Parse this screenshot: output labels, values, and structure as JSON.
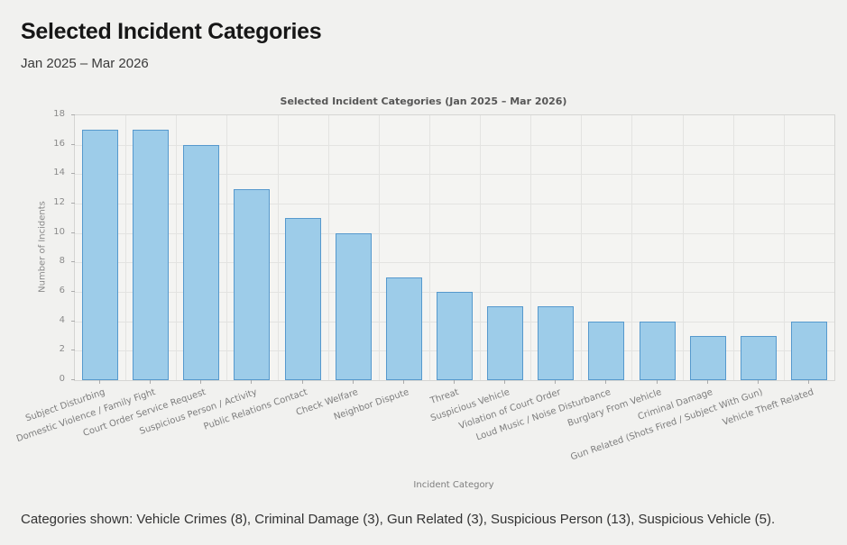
{
  "page": {
    "title": "Selected Incident Categories",
    "subtitle": "Jan 2025 – Mar 2026",
    "footer": "Categories shown: Vehicle Crimes (8), Criminal Damage (3), Gun Related (3), Suspicious Person (13), Suspicious Vehicle (5)."
  },
  "chart_data": {
    "type": "bar",
    "title": "Selected Incident Categories (Jan 2025 – Mar 2026)",
    "xlabel": "Incident Category",
    "ylabel": "Number of Incidents",
    "ylim": [
      0,
      18
    ],
    "ytick_step": 2,
    "grid": true,
    "categories": [
      "Subject Disturbing",
      "Domestic Violence / Family Fight",
      "Court Order Service Request",
      "Suspicious Person / Activity",
      "Public Relations Contact",
      "Check Welfare",
      "Neighbor Dispute",
      "Threat",
      "Suspicious Vehicle",
      "Violation of Court Order",
      "Loud Music / Noise Disturbance",
      "Burglary From Vehicle",
      "Criminal Damage",
      "Gun Related (Shots Fired / Subject With Gun)",
      "Vehicle Theft Related"
    ],
    "values": [
      17,
      17,
      16,
      13,
      11,
      10,
      7,
      6,
      5,
      5,
      4,
      4,
      3,
      3,
      4
    ],
    "colors": {
      "bar_fill": "#9dcce9",
      "bar_border": "#5699cd",
      "plot_background": "#f4f4f2",
      "page_background": "#f1f1ef",
      "gridline": "#e3e3e1"
    }
  }
}
